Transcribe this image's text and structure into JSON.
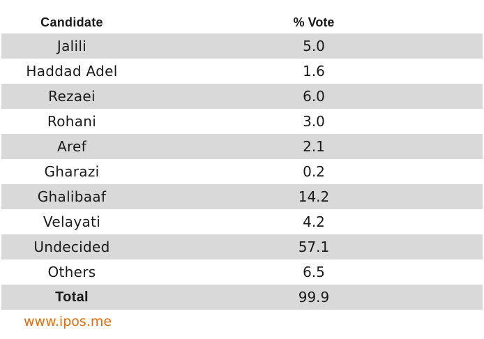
{
  "chart_data": {
    "type": "table",
    "columns": [
      "Candidate",
      "% Vote"
    ],
    "rows": [
      {
        "candidate": "Jalili",
        "vote": "5.0"
      },
      {
        "candidate": "Haddad Adel",
        "vote": "1.6"
      },
      {
        "candidate": "Rezaei",
        "vote": "6.0"
      },
      {
        "candidate": "Rohani",
        "vote": "3.0"
      },
      {
        "candidate": "Aref",
        "vote": "2.1"
      },
      {
        "candidate": "Gharazi",
        "vote": "0.2"
      },
      {
        "candidate": "Ghalibaaf",
        "vote": "14.2"
      },
      {
        "candidate": "Velayati",
        "vote": "4.2"
      },
      {
        "candidate": "Undecided",
        "vote": "57.1"
      },
      {
        "candidate": "Others",
        "vote": "6.5"
      }
    ],
    "total": {
      "label": "Total",
      "vote": "99.9"
    },
    "shading": {
      "even_row_color": "#d9d9d9"
    }
  },
  "footer": {
    "source": "www.ipos.me",
    "color": "#e36c0a"
  }
}
